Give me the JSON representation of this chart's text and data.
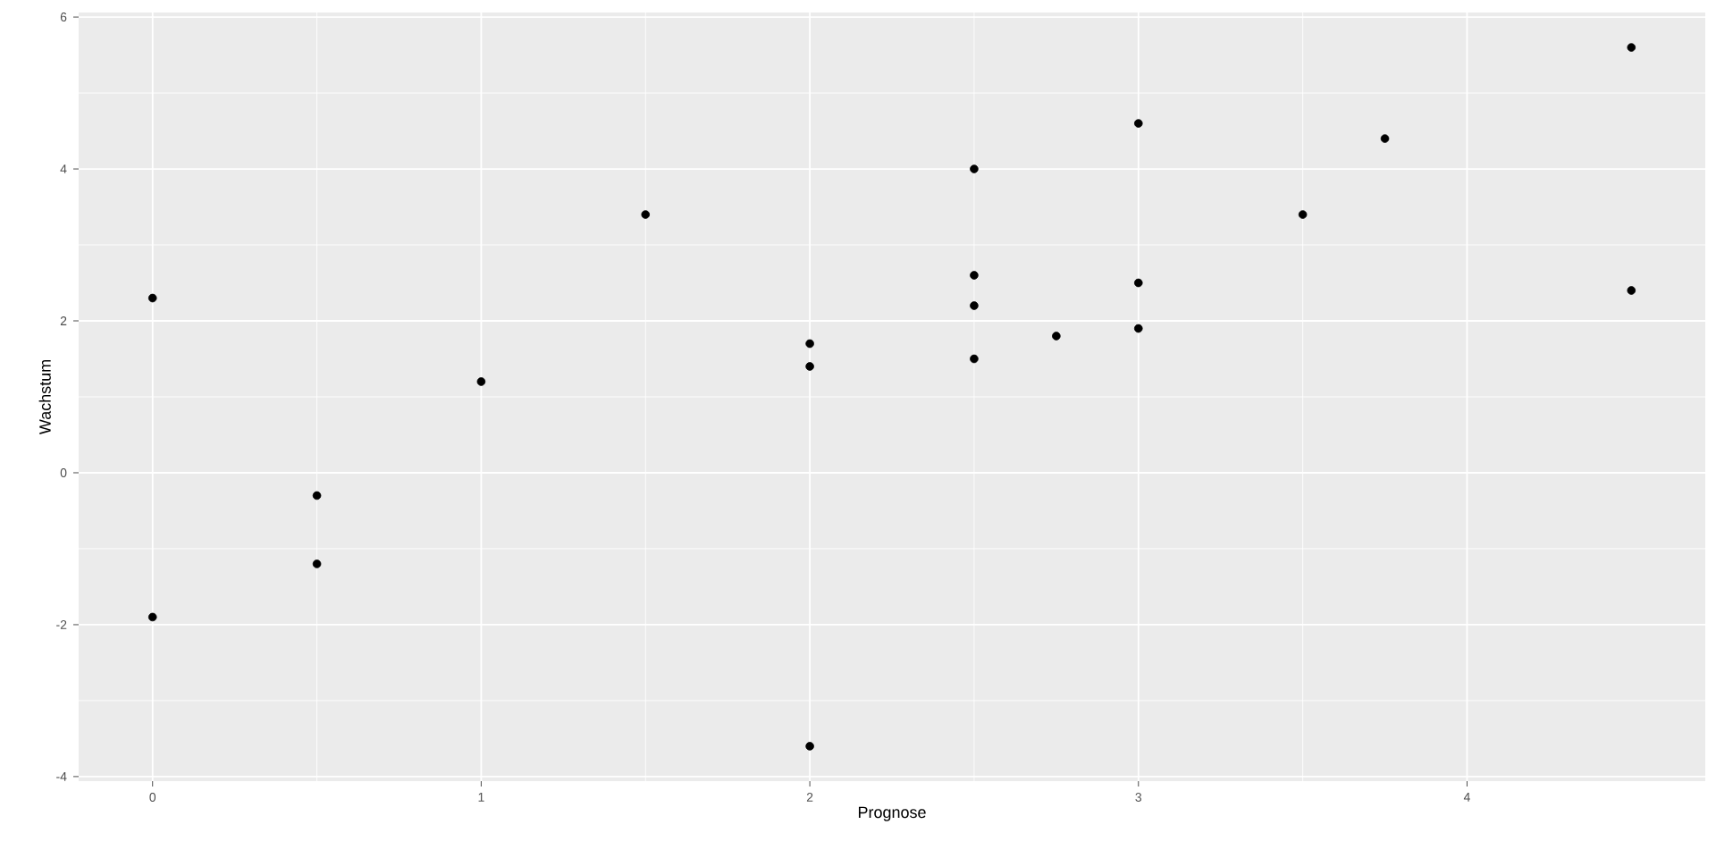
{
  "chart_data": {
    "type": "scatter",
    "xlabel": "Prognose",
    "ylabel": "Wachstum",
    "x": [
      0,
      0,
      0.5,
      0.5,
      1,
      1.5,
      2,
      2,
      2,
      2.5,
      2.5,
      2.5,
      2.5,
      2.75,
      3,
      3,
      3,
      3.5,
      3.75,
      4.5,
      4.5
    ],
    "values": [
      2.3,
      -1.9,
      -0.3,
      -1.2,
      1.2,
      3.4,
      1.7,
      1.4,
      -3.6,
      4.0,
      2.6,
      2.2,
      1.5,
      1.8,
      4.6,
      2.5,
      1.9,
      3.4,
      4.4,
      5.6,
      2.4
    ],
    "color": "#000000",
    "marker": "circle",
    "grid": true,
    "xlim": [
      -0.225,
      4.725
    ],
    "ylim": [
      -4.06,
      6.06
    ],
    "xticks": [
      0,
      1,
      2,
      3,
      4
    ],
    "yticks": [
      -4,
      -2,
      0,
      2,
      4,
      6
    ]
  }
}
